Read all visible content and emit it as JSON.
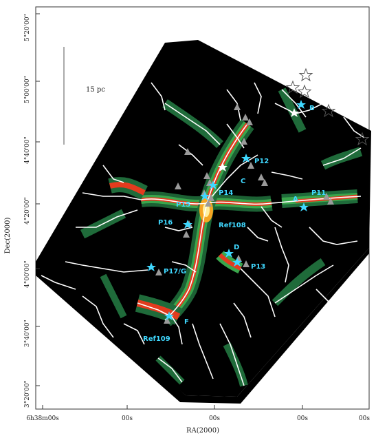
{
  "figure": {
    "y_axis_title": "Dec(2000)",
    "x_axis_title": "RA(2000)",
    "y_ticks": [
      {
        "label": "5°20'00\""
      },
      {
        "label": "5°00'00\""
      },
      {
        "label": "4°40'00\""
      },
      {
        "label": "4°20'00\""
      },
      {
        "label": "4°00'00\""
      },
      {
        "label": "3°40'00\""
      },
      {
        "label": "3°20'00\""
      }
    ],
    "x_ticks": [
      {
        "label": "6h38m00s"
      },
      {
        "label": "00s"
      },
      {
        "label": "00s"
      },
      {
        "label": "00s"
      },
      {
        "label": "00s"
      }
    ],
    "scale_bar": {
      "label": "15 pc"
    },
    "region_labels": [
      {
        "id": "B",
        "text": "B"
      },
      {
        "id": "P12",
        "text": "P12"
      },
      {
        "id": "C",
        "text": "C"
      },
      {
        "id": "P14",
        "text": "P14"
      },
      {
        "id": "P11",
        "text": "P11"
      },
      {
        "id": "A",
        "text": "A"
      },
      {
        "id": "P15",
        "text": "P15"
      },
      {
        "id": "P16",
        "text": "P16"
      },
      {
        "id": "Ref108",
        "text": "Ref108"
      },
      {
        "id": "D",
        "text": "D"
      },
      {
        "id": "P13",
        "text": "P13"
      },
      {
        "id": "P17G",
        "text": "P17/G"
      },
      {
        "id": "F",
        "text": "F"
      },
      {
        "id": "Ref109",
        "text": "Ref109"
      }
    ],
    "colors": {
      "background_map": "#000000",
      "filament_low": "#1f6b3a",
      "filament_mid": "#3aa64c",
      "filament_high": "#e33b1e",
      "filament_peak": "#f5a623",
      "skeleton": "#ffffff",
      "label_cyan": "#3fd8ff",
      "triangle_gray": "#9a9a9a"
    }
  }
}
